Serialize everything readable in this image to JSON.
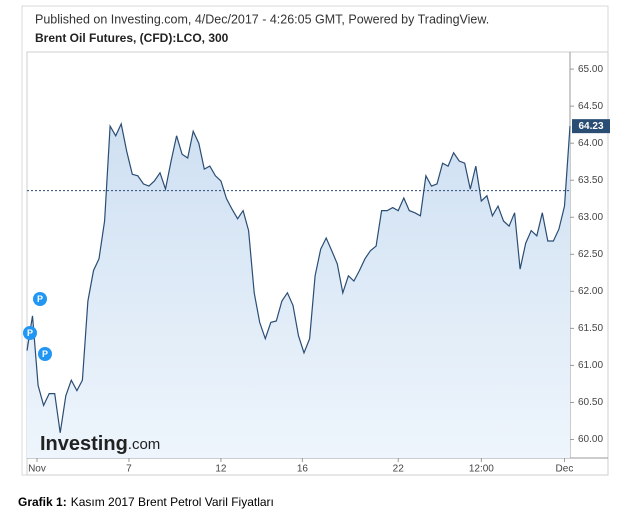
{
  "chart_data": {
    "type": "area-line",
    "header": "Published on Investing.com, 4/Dec/2017 - 4:26:05 GMT, Powered by TradingView.",
    "title": "Brent Oil Futures, (CFD):LCO, 300",
    "watermark": [
      "Investing",
      ".com"
    ],
    "markers": [
      "P",
      "P",
      "P"
    ],
    "caption": [
      "Grafik 1:",
      "Kasım 2017 Brent Petrol Varil Fiyatları"
    ],
    "color": "#2a4d74",
    "fill": "#dbe8f6",
    "x": [
      0,
      1,
      2,
      3,
      4,
      5,
      6,
      7,
      8,
      9,
      10,
      11,
      12,
      13,
      14,
      15,
      16,
      17,
      18,
      19,
      20,
      21,
      22,
      23,
      24,
      25,
      26,
      27,
      28,
      29,
      30,
      31,
      32,
      33,
      34,
      35,
      36,
      37,
      38,
      39,
      40,
      41,
      42,
      43,
      44,
      45,
      46,
      47,
      48,
      49,
      50,
      51,
      52,
      53,
      54,
      55,
      56,
      57,
      58,
      59,
      60,
      61,
      62,
      63,
      64,
      65,
      66,
      67,
      68,
      69,
      70,
      71,
      72,
      73,
      74,
      75,
      76,
      77,
      78,
      79,
      80,
      81,
      82,
      83,
      84,
      85,
      86,
      87,
      88,
      89,
      90,
      91,
      92,
      93,
      94,
      95,
      96,
      97,
      98
    ],
    "values": [
      61.2,
      61.67,
      60.73,
      60.46,
      60.62,
      60.62,
      60.09,
      60.59,
      60.8,
      60.66,
      60.8,
      61.87,
      62.28,
      62.44,
      62.95,
      64.23,
      64.1,
      64.26,
      63.89,
      63.58,
      63.56,
      63.45,
      63.42,
      63.49,
      63.6,
      63.38,
      63.76,
      64.1,
      63.85,
      63.8,
      64.16,
      64.0,
      63.65,
      63.69,
      63.56,
      63.49,
      63.25,
      63.11,
      62.98,
      63.09,
      62.82,
      61.98,
      61.58,
      61.36,
      61.58,
      61.6,
      61.87,
      61.98,
      61.81,
      61.4,
      61.17,
      61.36,
      62.21,
      62.57,
      62.72,
      62.55,
      62.37,
      61.98,
      62.21,
      62.14,
      62.28,
      62.44,
      62.55,
      62.61,
      63.09,
      63.09,
      63.13,
      63.09,
      63.26,
      63.09,
      63.06,
      63.02,
      63.56,
      63.42,
      63.45,
      63.73,
      63.69,
      63.87,
      63.76,
      63.73,
      63.38,
      63.69,
      63.22,
      63.29,
      63.02,
      63.15,
      62.95,
      62.88,
      63.06,
      62.3,
      62.65,
      62.82,
      62.75,
      63.06,
      62.68,
      62.68,
      62.84,
      63.15,
      64.23
    ],
    "reference_line": 63.36,
    "xlim": [
      0,
      98
    ],
    "xticks": [
      {
        "value": 1.8,
        "label": "Nov"
      },
      {
        "value": 18.4,
        "label": "7"
      },
      {
        "value": 35,
        "label": "12"
      },
      {
        "value": 49.7,
        "label": "16"
      },
      {
        "value": 67,
        "label": "22"
      },
      {
        "value": 82,
        "label": "12:00"
      },
      {
        "value": 97,
        "label": "Dec"
      }
    ],
    "ylim": [
      59.75,
      65.15
    ],
    "yticks": [
      {
        "value": 60,
        "label": "60.00"
      },
      {
        "value": 60.5,
        "label": "60.50"
      },
      {
        "value": 61,
        "label": "61.00"
      },
      {
        "value": 61.5,
        "label": "61.50"
      },
      {
        "value": 62,
        "label": "62.00"
      },
      {
        "value": 62.5,
        "label": "62.50"
      },
      {
        "value": 63,
        "label": "63.00"
      },
      {
        "value": 63.5,
        "label": "63.50"
      },
      {
        "value": 64,
        "label": "64.00"
      },
      {
        "value": 64.5,
        "label": "64.50"
      },
      {
        "value": 65,
        "label": "65.00"
      }
    ],
    "grid": false
  }
}
